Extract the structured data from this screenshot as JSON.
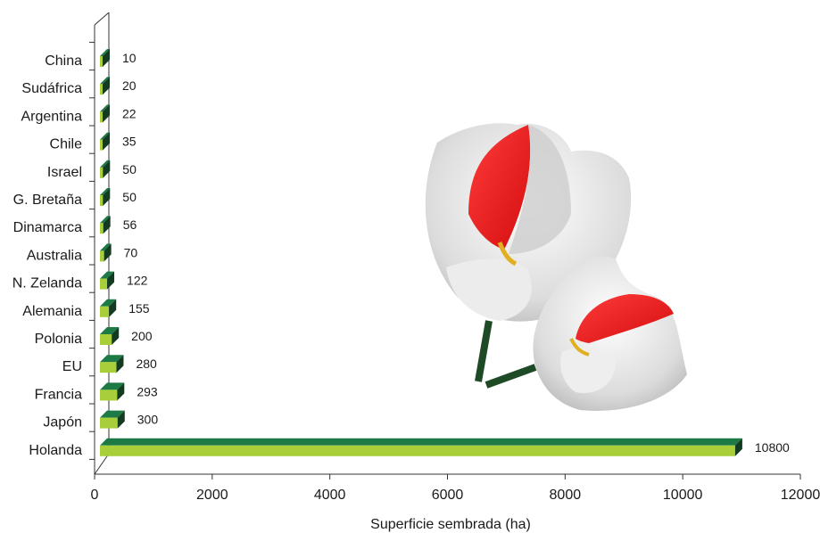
{
  "chart_data": {
    "type": "bar",
    "orientation": "horizontal",
    "categories": [
      "Holanda",
      "Japón",
      "Francia",
      "EU",
      "Polonia",
      "Alemania",
      "N. Zelanda",
      "Australia",
      "Dinamarca",
      "G. Bretaña",
      "Israel",
      "Chile",
      "Argentina",
      "Sudáfrica",
      "China"
    ],
    "values": [
      10800,
      300,
      293,
      280,
      200,
      155,
      122,
      70,
      56,
      50,
      50,
      35,
      22,
      20,
      10
    ],
    "value_labels": [
      "10800",
      "300",
      "293",
      "280",
      "200",
      "155",
      "122",
      "70",
      "56",
      "50",
      "50",
      "35",
      "22",
      "20",
      "10"
    ],
    "xlabel": "Superficie sembrada (ha)",
    "ylabel": "",
    "xlim": [
      0,
      12000
    ],
    "xticks": [
      0,
      2000,
      4000,
      6000,
      8000,
      10000,
      12000
    ],
    "xtick_labels": [
      "0",
      "2000",
      "4000",
      "6000",
      "8000",
      "10000",
      "12000"
    ],
    "grid": false,
    "legend": "none",
    "bar_colors": {
      "front": "#a8cf3a",
      "top": "#1e7a45",
      "side": "#123b22"
    },
    "decoration": "tulip-flowers-picture"
  }
}
